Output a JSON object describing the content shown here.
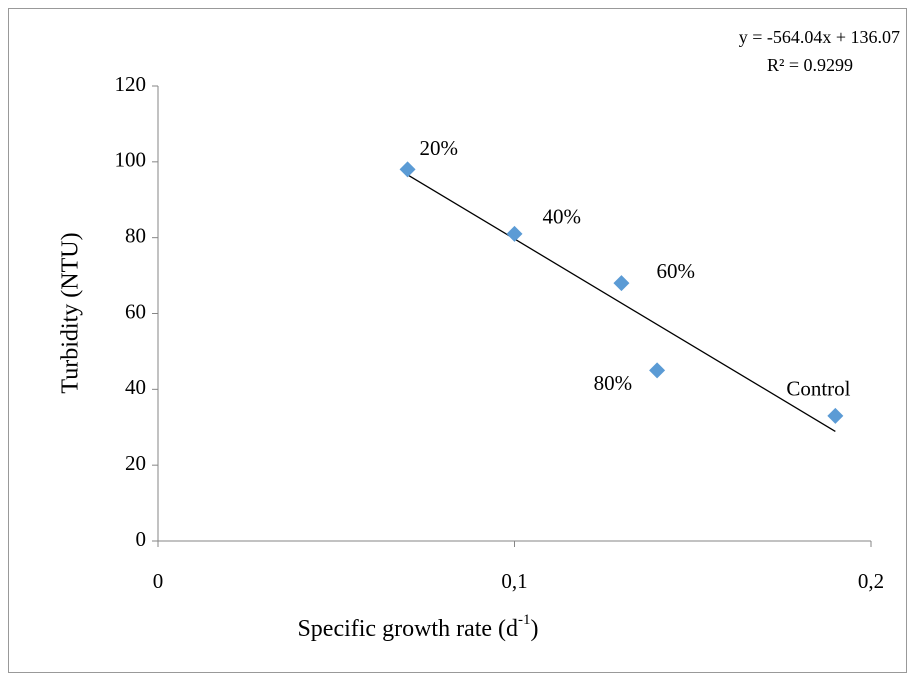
{
  "chart_data": {
    "type": "scatter",
    "x_label": {
      "main": "Specific growth rate (d",
      "sup": "-1",
      "end": ")"
    },
    "y_label": "Turbidity (NTU)",
    "annotations": [
      "y = -564.04x + 136.07",
      "R² = 0.9299"
    ],
    "series": [
      {
        "color": "#5b9bd5",
        "x": [
          0.07,
          0.1,
          0.13,
          0.14,
          0.19
        ],
        "values": [
          98,
          81,
          68,
          45,
          33
        ],
        "point_labels": [
          "20%",
          "40%",
          "60%",
          "80%",
          "Control"
        ]
      }
    ],
    "trendline": {
      "color": "#000000",
      "x": [
        0.07,
        0.19
      ],
      "values": [
        96.59,
        28.9
      ]
    },
    "xlim": [
      0,
      0.2
    ],
    "xticks": [
      0,
      {
        "value": 0.1,
        "label": "0,1"
      },
      {
        "value": 0.2,
        "label": "0,2"
      }
    ],
    "ylim": [
      0,
      120
    ],
    "yticks": [
      0,
      20,
      40,
      60,
      80,
      100,
      120
    ],
    "grid": false
  }
}
